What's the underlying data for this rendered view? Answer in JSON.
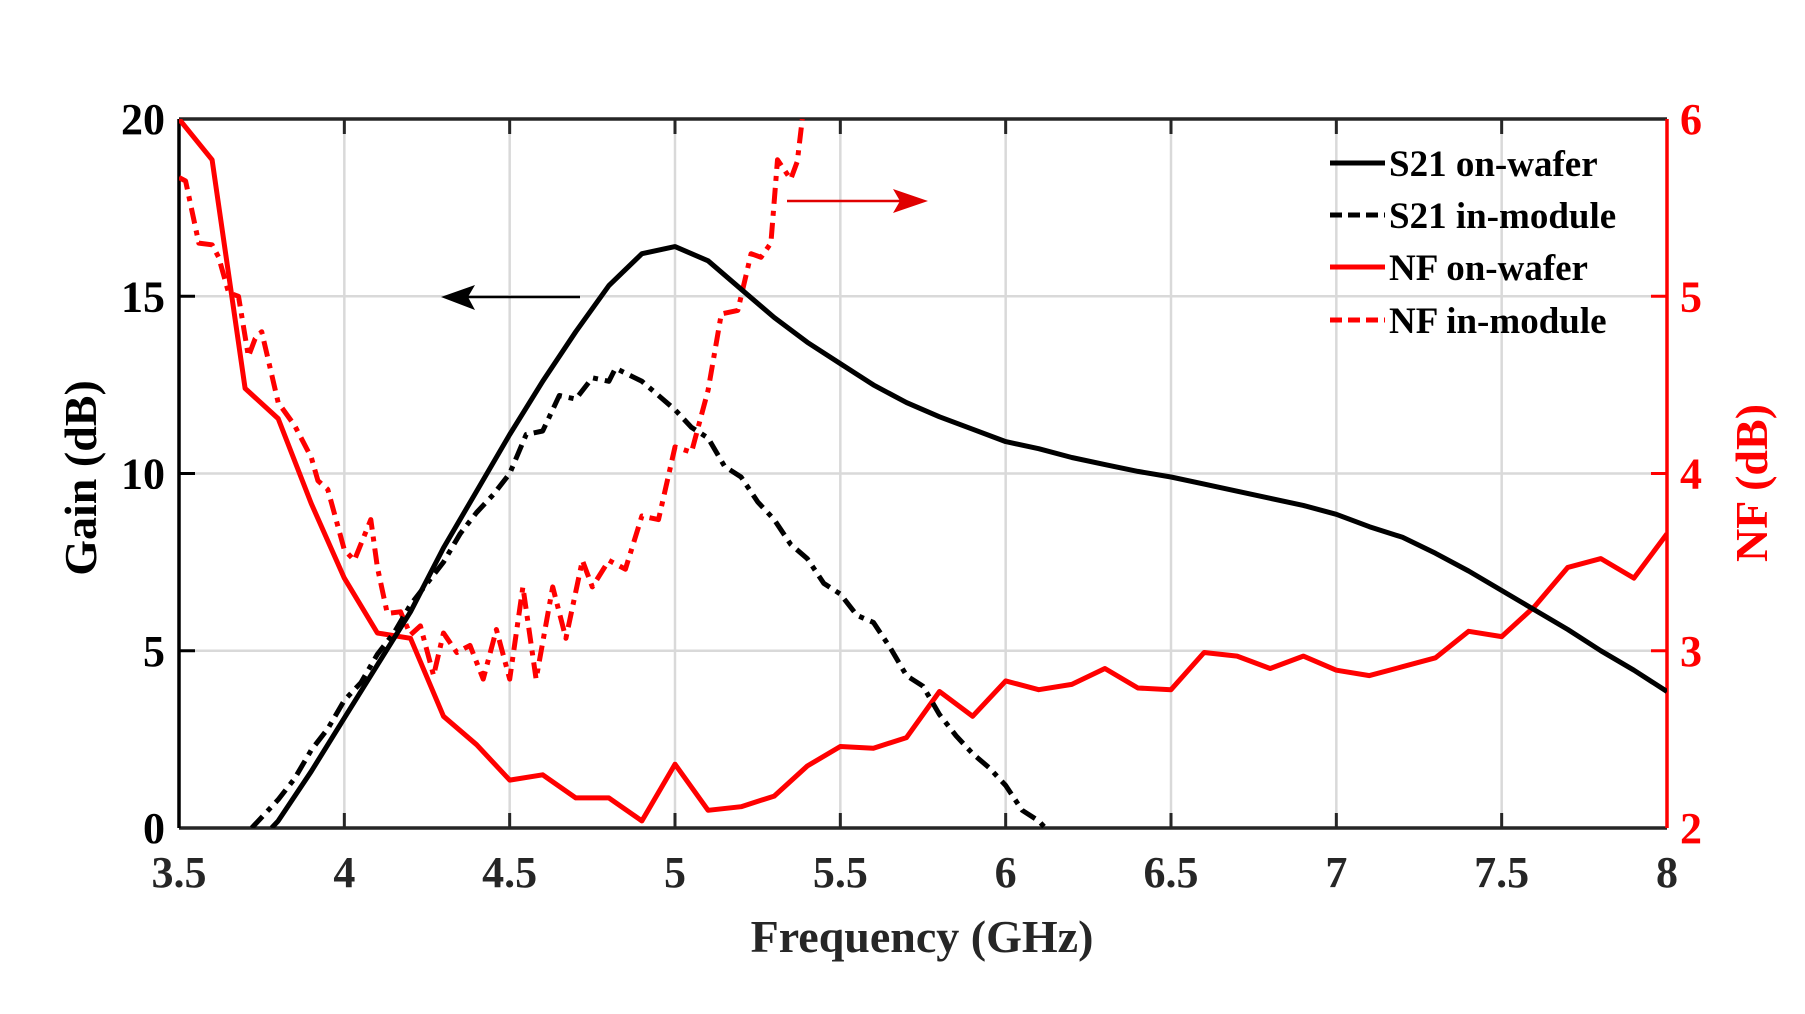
{
  "chart_data": {
    "type": "line",
    "title": "",
    "xlabel": "Frequency (GHz)",
    "ylabel": "Gain (dB)",
    "y2label": "NF (dB)",
    "xlim": [
      3.5,
      8
    ],
    "ylim": [
      0,
      20
    ],
    "y2lim": [
      2,
      6
    ],
    "grid": true,
    "legend_position": "top-right",
    "x_ticks": [
      "3.5",
      "4",
      "4.5",
      "5",
      "5.5",
      "6",
      "6.5",
      "7",
      "7.5",
      "8"
    ],
    "y_ticks": [
      "0",
      "5",
      "10",
      "15",
      "20"
    ],
    "y2_ticks": [
      "2",
      "3",
      "4",
      "5",
      "6"
    ],
    "colors": {
      "gain": "#000000",
      "nf": "#ff0000",
      "grid": "#d9d9d9",
      "axis": "#262626"
    },
    "annotations": [
      {
        "type": "arrow",
        "direction": "left",
        "axis": "left",
        "color": "#000000"
      },
      {
        "type": "arrow",
        "direction": "right",
        "axis": "right",
        "color": "#e00000"
      }
    ],
    "series": [
      {
        "name": "S21 on-wafer",
        "axis": "left",
        "color": "#000000",
        "style": "solid",
        "x": [
          3.78,
          3.8,
          3.9,
          4.0,
          4.1,
          4.2,
          4.3,
          4.4,
          4.5,
          4.6,
          4.7,
          4.8,
          4.9,
          5.0,
          5.1,
          5.2,
          5.3,
          5.4,
          5.5,
          5.6,
          5.7,
          5.8,
          5.9,
          6.0,
          6.1,
          6.2,
          6.3,
          6.4,
          6.5,
          6.6,
          6.7,
          6.8,
          6.9,
          7.0,
          7.1,
          7.2,
          7.3,
          7.4,
          7.5,
          7.6,
          7.7,
          7.8,
          7.9,
          8.0
        ],
        "y": [
          0,
          0.2,
          1.6,
          3.1,
          4.6,
          6.1,
          7.9,
          9.5,
          11.1,
          12.6,
          14.0,
          15.3,
          16.2,
          16.4,
          16.0,
          15.2,
          14.4,
          13.7,
          13.1,
          12.5,
          12.0,
          11.6,
          11.25,
          10.9,
          10.7,
          10.45,
          10.25,
          10.06,
          9.9,
          9.7,
          9.5,
          9.3,
          9.1,
          8.85,
          8.5,
          8.2,
          7.75,
          7.25,
          6.7,
          6.15,
          5.6,
          5.0,
          4.45,
          3.85
        ]
      },
      {
        "name": "S21 in-module",
        "axis": "left",
        "color": "#000000",
        "style": "dashdot",
        "x": [
          3.72,
          3.8,
          3.85,
          3.9,
          3.95,
          4.0,
          4.05,
          4.1,
          4.15,
          4.2,
          4.25,
          4.3,
          4.35,
          4.4,
          4.45,
          4.5,
          4.55,
          4.6,
          4.65,
          4.7,
          4.75,
          4.8,
          4.82,
          4.9,
          4.95,
          5.0,
          5.05,
          5.1,
          5.15,
          5.2,
          5.25,
          5.3,
          5.35,
          5.4,
          5.45,
          5.5,
          5.55,
          5.6,
          5.65,
          5.7,
          5.75,
          5.8,
          5.85,
          5.9,
          5.95,
          6.0,
          6.05,
          6.1,
          6.12
        ],
        "y": [
          0,
          0.8,
          1.4,
          2.2,
          2.8,
          3.6,
          4.1,
          4.9,
          5.5,
          6.3,
          6.9,
          7.5,
          8.3,
          8.9,
          9.4,
          10.0,
          11.1,
          11.2,
          12.2,
          12.1,
          12.7,
          12.6,
          12.97,
          12.6,
          12.2,
          11.8,
          11.3,
          11.0,
          10.2,
          9.9,
          9.2,
          8.7,
          8.0,
          7.6,
          6.9,
          6.6,
          6.0,
          5.8,
          5.1,
          4.3,
          4.0,
          3.2,
          2.6,
          2.1,
          1.7,
          1.2,
          0.5,
          0.2,
          0
        ]
      },
      {
        "name": "NF on-wafer",
        "axis": "right",
        "color": "#ff0000",
        "style": "solid",
        "x": [
          3.5,
          3.6,
          3.7,
          3.8,
          3.9,
          4.0,
          4.1,
          4.2,
          4.3,
          4.4,
          4.5,
          4.6,
          4.7,
          4.8,
          4.9,
          5.0,
          5.1,
          5.2,
          5.3,
          5.4,
          5.5,
          5.6,
          5.7,
          5.8,
          5.9,
          6.0,
          6.1,
          6.2,
          6.3,
          6.4,
          6.5,
          6.6,
          6.7,
          6.8,
          6.9,
          7.0,
          7.1,
          7.2,
          7.3,
          7.4,
          7.5,
          7.6,
          7.7,
          7.8,
          7.9,
          8.0
        ],
        "y": [
          6.0,
          5.77,
          4.48,
          4.31,
          3.83,
          3.41,
          3.1,
          3.07,
          2.63,
          2.47,
          2.27,
          2.3,
          2.17,
          2.17,
          2.04,
          2.36,
          2.1,
          2.12,
          2.18,
          2.35,
          2.46,
          2.45,
          2.51,
          2.77,
          2.63,
          2.83,
          2.78,
          2.81,
          2.9,
          2.79,
          2.78,
          2.99,
          2.97,
          2.9,
          2.97,
          2.89,
          2.86,
          2.91,
          2.96,
          3.11,
          3.08,
          3.25,
          3.47,
          3.52,
          3.41,
          3.66
        ]
      },
      {
        "name": "NF in-module",
        "axis": "right",
        "color": "#ff0000",
        "style": "dashdot",
        "x": [
          3.5,
          3.52,
          3.56,
          3.6,
          3.62,
          3.65,
          3.68,
          3.71,
          3.73,
          3.75,
          3.8,
          3.85,
          3.9,
          3.92,
          3.95,
          4.0,
          4.03,
          4.08,
          4.1,
          4.13,
          4.17,
          4.2,
          4.23,
          4.27,
          4.3,
          4.34,
          4.38,
          4.42,
          4.46,
          4.5,
          4.54,
          4.58,
          4.63,
          4.67,
          4.72,
          4.75,
          4.8,
          4.85,
          4.9,
          4.95,
          5.0,
          5.05,
          5.1,
          5.14,
          5.19,
          5.23,
          5.26,
          5.29,
          5.31,
          5.35,
          5.37,
          5.385
        ],
        "y": [
          5.67,
          5.65,
          5.3,
          5.29,
          5.22,
          5.02,
          5.0,
          4.66,
          4.76,
          4.8,
          4.4,
          4.27,
          4.09,
          3.96,
          3.91,
          3.57,
          3.51,
          3.74,
          3.47,
          3.21,
          3.22,
          3.09,
          3.14,
          2.86,
          3.1,
          2.99,
          3.03,
          2.84,
          3.12,
          2.84,
          3.36,
          2.84,
          3.36,
          3.07,
          3.51,
          3.36,
          3.51,
          3.46,
          3.76,
          3.74,
          4.15,
          4.12,
          4.47,
          4.9,
          4.92,
          5.24,
          5.22,
          5.3,
          5.77,
          5.66,
          5.76,
          6.0
        ]
      }
    ]
  }
}
